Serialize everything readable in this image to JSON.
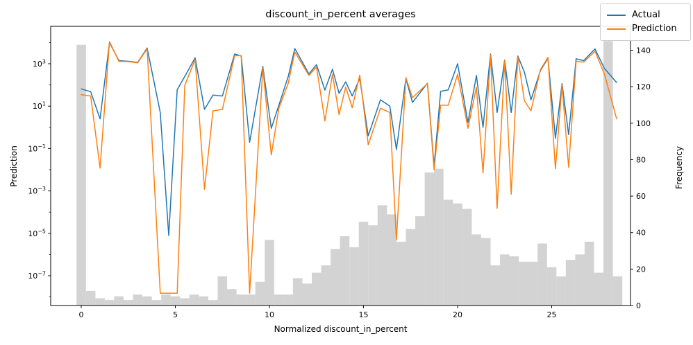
{
  "title": "discount_in_percent averages",
  "axes": {
    "xlabel": "Normalized discount_in_percent",
    "ylabel_left": "Prediction",
    "ylabel_right": "Frequency",
    "x_ticks": [
      0,
      5,
      10,
      15,
      20,
      25
    ],
    "y_left_tick_exponents": [
      3,
      1,
      -1,
      -3,
      -5,
      -7
    ],
    "y_left_minor_tick_exponents": [
      4,
      2,
      0,
      -2,
      -4,
      -6,
      -8
    ],
    "y_right_ticks": [
      0,
      20,
      40,
      60,
      80,
      100,
      120,
      140
    ]
  },
  "legend": {
    "entries": [
      {
        "label": "Actual",
        "color": "#1f77b4"
      },
      {
        "label": "Prediction",
        "color": "#ff7f0e"
      }
    ]
  },
  "colors": {
    "actual": "#1f77b4",
    "prediction": "#ff7f0e",
    "histogram": "#d3d3d3",
    "spine": "#000000"
  },
  "chart_data": {
    "type": "line+histogram",
    "title": "discount_in_percent averages",
    "xlabel": "Normalized discount_in_percent",
    "ylabel": "Prediction",
    "ylabel2": "Frequency",
    "y_scale_left": "log",
    "xlim": [
      -1.6,
      29.3
    ],
    "ylim_left_exponents": [
      -8.4,
      4.8
    ],
    "ylim_right": [
      0,
      153
    ],
    "legend_position": "upper right, outside axes",
    "x": [
      0.0,
      0.5,
      1.0,
      1.5,
      2.0,
      2.5,
      3.0,
      3.5,
      4.2,
      4.65,
      5.1,
      5.5,
      6.05,
      6.55,
      7.0,
      7.5,
      8.15,
      8.5,
      8.95,
      9.65,
      10.1,
      10.5,
      11.0,
      11.35,
      12.1,
      12.5,
      12.95,
      13.35,
      13.7,
      14.05,
      14.4,
      14.8,
      15.25,
      15.9,
      16.4,
      16.75,
      17.25,
      17.6,
      18.4,
      18.75,
      19.1,
      19.5,
      20.0,
      20.55,
      21.0,
      21.35,
      21.75,
      22.1,
      22.5,
      22.85,
      23.2,
      23.55,
      23.9,
      24.4,
      24.8,
      25.2,
      25.55,
      25.9,
      26.3,
      26.7,
      27.3,
      27.8,
      28.45
    ],
    "series": [
      {
        "name": "Actual",
        "color": "#1f77b4",
        "values": [
          65,
          48,
          2.5,
          10000,
          1400,
          1300,
          1150,
          5500,
          5,
          8e-06,
          60,
          250,
          1900,
          7,
          33,
          30,
          2900,
          2300,
          0.2,
          750,
          0.9,
          11,
          250,
          5200,
          330,
          900,
          57,
          550,
          40,
          140,
          30,
          200,
          0.4,
          20,
          10,
          0.09,
          200,
          15,
          120,
          0.015,
          50,
          58,
          1000,
          1.7,
          280,
          1.0,
          2900,
          5,
          1500,
          5,
          2300,
          400,
          20,
          470,
          1800,
          0.3,
          115,
          0.45,
          1700,
          1400,
          5000,
          600,
          130
        ]
      },
      {
        "name": "Prediction",
        "color": "#ff7f0e",
        "values": [
          35,
          30,
          0.012,
          11000,
          1300,
          1250,
          1100,
          5000,
          1.5e-08,
          1.5e-08,
          1.5e-08,
          95,
          1600,
          0.0012,
          6,
          7,
          2400,
          2400,
          1.5e-08,
          650,
          0.05,
          8,
          120,
          3600,
          280,
          700,
          2,
          320,
          4,
          80,
          8.5,
          290,
          0.15,
          8,
          5,
          5e-06,
          220,
          25,
          115,
          0.01,
          11,
          11,
          320,
          0.9,
          80,
          0.007,
          2600,
          0.00015,
          1400,
          0.0007,
          2100,
          18,
          6,
          520,
          2000,
          0.011,
          100,
          0.013,
          1300,
          1200,
          3900,
          330,
          2.5
        ]
      }
    ],
    "histogram": {
      "color": "#d3d3d3",
      "bin_width": 0.5,
      "centers": [
        0,
        0.5,
        1,
        1.5,
        2,
        2.5,
        3,
        3.5,
        4,
        4.5,
        5,
        5.5,
        6,
        6.5,
        7,
        7.5,
        8,
        8.5,
        9,
        9.5,
        10,
        10.5,
        11,
        11.5,
        12,
        12.5,
        13,
        13.5,
        14,
        14.5,
        15,
        15.5,
        16,
        16.5,
        17,
        17.5,
        18,
        18.5,
        19,
        19.5,
        20,
        20.5,
        21,
        21.5,
        22,
        22.5,
        23,
        23.5,
        24,
        24.5,
        25,
        25.5,
        26,
        26.5,
        27,
        27.5,
        28,
        28.5
      ],
      "frequencies": [
        143,
        8,
        4,
        3,
        5,
        3,
        6,
        5,
        3,
        6,
        5,
        4,
        6,
        5,
        3,
        16,
        9,
        6,
        6,
        13,
        36,
        6,
        6,
        15,
        12,
        18,
        22,
        31,
        38,
        32,
        46,
        44,
        55,
        50,
        35,
        42,
        49,
        73,
        75,
        58,
        56,
        53,
        39,
        37,
        22,
        28,
        27,
        24,
        24,
        34,
        21,
        16,
        25,
        28,
        35,
        18,
        145,
        16
      ]
    }
  }
}
